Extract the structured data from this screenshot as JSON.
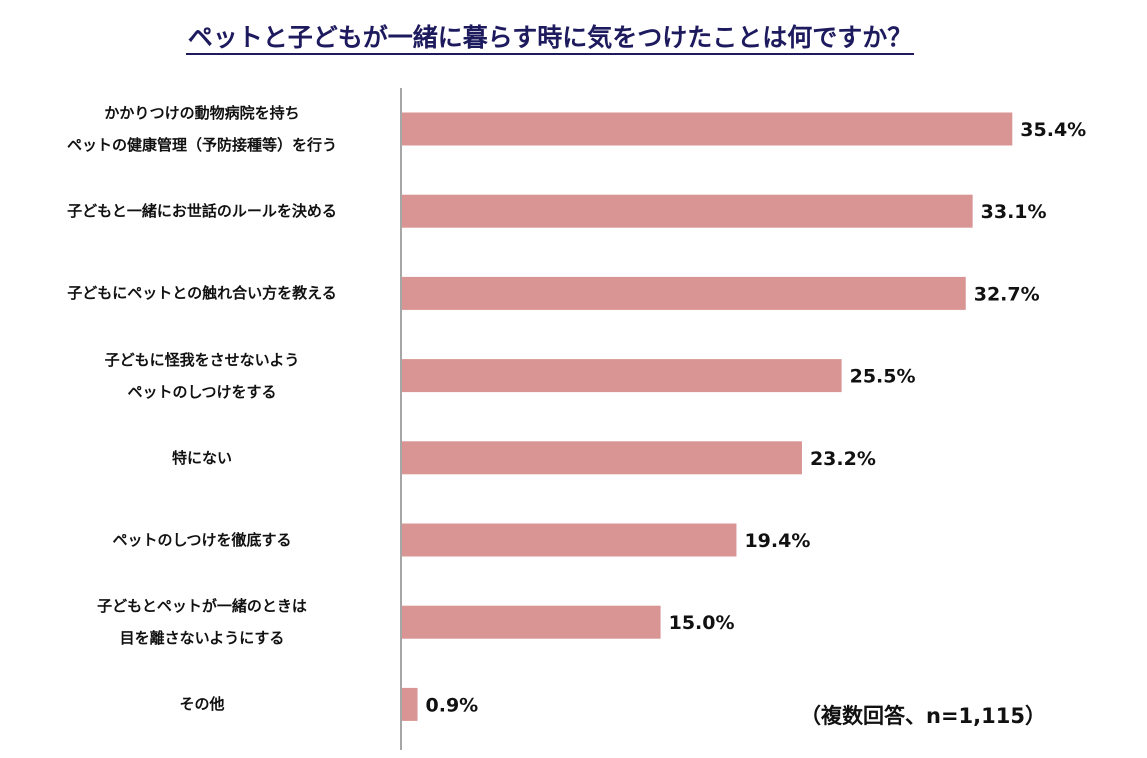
{
  "header": {
    "title": "ペットと子どもが一緒に暮らす時に気をつけたことは何ですか？"
  },
  "note": "（複数回答、n=1,115）",
  "colors": {
    "bar": "#d99594",
    "axis": "#888888",
    "title": "#1d1a5e"
  },
  "chart_data": {
    "type": "bar",
    "orientation": "horizontal",
    "title": "ペットと子どもが一緒に暮らす時に気をつけたことは何ですか？",
    "categories": [
      [
        "かかりつけの動物病院を持ち",
        "ペットの健康管理（予防接種等）を行う"
      ],
      [
        "子どもと一緒にお世話のルールを決める"
      ],
      [
        "子どもにペットとの触れ合い方を教える"
      ],
      [
        "子どもに怪我をさせないよう",
        "ペットのしつけをする"
      ],
      [
        "特にない"
      ],
      [
        "ペットのしつけを徹底する"
      ],
      [
        "子どもとペットが一緒のときは",
        "目を離さないようにする"
      ],
      [
        "その他"
      ]
    ],
    "values": [
      35.4,
      33.1,
      32.7,
      25.5,
      23.2,
      19.4,
      15.0,
      0.9
    ],
    "value_labels": [
      "35.4%",
      "33.1%",
      "32.7%",
      "25.5%",
      "23.2%",
      "19.4%",
      "15.0%",
      "0.9%"
    ],
    "unit": "%",
    "xlim": [
      0,
      40
    ],
    "grid": false,
    "legend": "none"
  }
}
